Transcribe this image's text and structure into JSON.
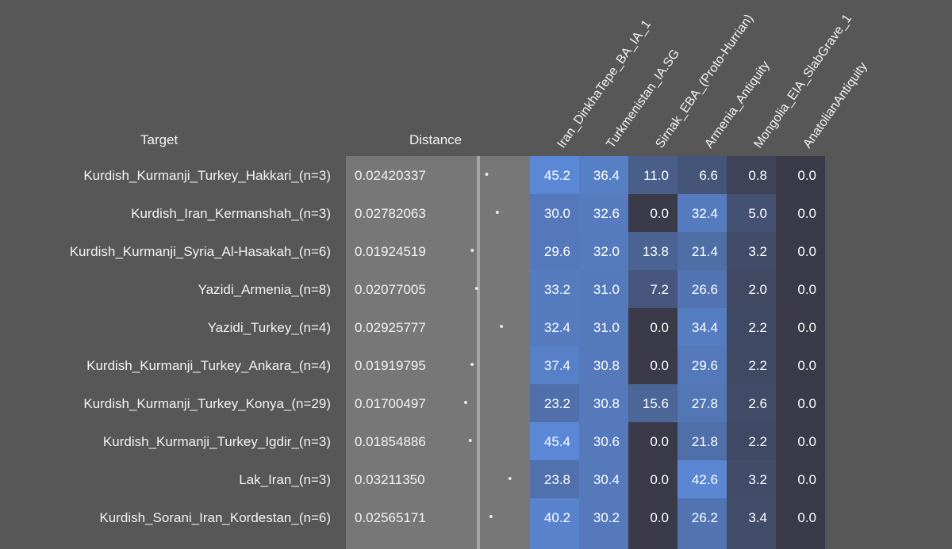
{
  "headers": {
    "target": "Target",
    "distance": "Distance"
  },
  "colors": {
    "background": "#575757",
    "distance_panel": "#777777",
    "distance_dot": "#e6e6e6",
    "heat_low": "#3a3a48",
    "heat_high": "#5b88d6"
  },
  "chart_data": {
    "type": "table",
    "columns": [
      "Iran_DinkhaTepe_BA_IA_1",
      "Turkmenistan_IA.SG",
      "Sirnak_EBA_(Proto-Hurrian)",
      "Armenia_Antiquity",
      "Mongolia_EIA_SlabGrave_1",
      "AnatolianAntiquity"
    ],
    "rows": [
      {
        "target": "Kurdish_Kurmanji_Turkey_Hakkari_(n=3)",
        "distance": "0.02420337",
        "values": [
          45.2,
          36.4,
          11.0,
          6.6,
          0.8,
          0.0
        ]
      },
      {
        "target": "Kurdish_Iran_Kermanshah_(n=3)",
        "distance": "0.02782063",
        "values": [
          30.0,
          32.6,
          0.0,
          32.4,
          5.0,
          0.0
        ]
      },
      {
        "target": "Kurdish_Kurmanji_Syria_Al-Hasakah_(n=6)",
        "distance": "0.01924519",
        "values": [
          29.6,
          32.0,
          13.8,
          21.4,
          3.2,
          0.0
        ]
      },
      {
        "target": "Yazidi_Armenia_(n=8)",
        "distance": "0.02077005",
        "values": [
          33.2,
          31.0,
          7.2,
          26.6,
          2.0,
          0.0
        ]
      },
      {
        "target": "Yazidi_Turkey_(n=4)",
        "distance": "0.02925777",
        "values": [
          32.4,
          31.0,
          0.0,
          34.4,
          2.2,
          0.0
        ]
      },
      {
        "target": "Kurdish_Kurmanji_Turkey_Ankara_(n=4)",
        "distance": "0.01919795",
        "values": [
          37.4,
          30.8,
          0.0,
          29.6,
          2.2,
          0.0
        ]
      },
      {
        "target": "Kurdish_Kurmanji_Turkey_Konya_(n=29)",
        "distance": "0.01700497",
        "values": [
          23.2,
          30.8,
          15.6,
          27.8,
          2.6,
          0.0
        ]
      },
      {
        "target": "Kurdish_Kurmanji_Turkey_Igdir_(n=3)",
        "distance": "0.01854886",
        "values": [
          45.4,
          30.6,
          0.0,
          21.8,
          2.2,
          0.0
        ]
      },
      {
        "target": "Lak_Iran_(n=3)",
        "distance": "0.03211350",
        "values": [
          23.8,
          30.4,
          0.0,
          42.6,
          3.2,
          0.0
        ]
      },
      {
        "target": "Kurdish_Sorani_Iran_Kordestan_(n=6)",
        "distance": "0.02565171",
        "values": [
          40.2,
          30.2,
          0.0,
          26.2,
          3.4,
          0.0
        ]
      }
    ]
  }
}
